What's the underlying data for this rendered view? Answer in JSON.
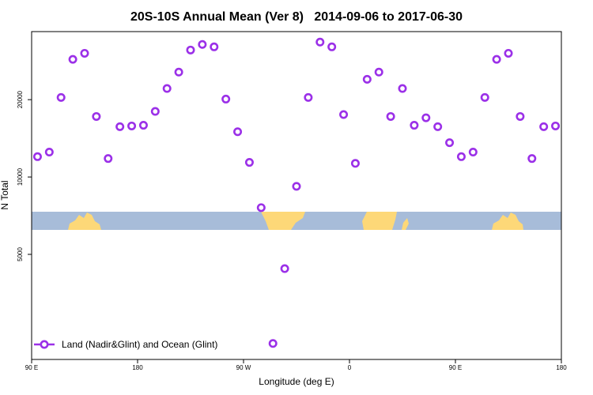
{
  "chart_data": {
    "type": "scatter",
    "title": "20S-10S Annual Mean (Ver 8)   2014-09-06 to 2017-06-30",
    "x_label": "Longitude (deg E)",
    "y_label": "N Total",
    "x": [
      95,
      105,
      115,
      125,
      135,
      145,
      155,
      165,
      175,
      185,
      195,
      205,
      215,
      225,
      235,
      245,
      255,
      265,
      275,
      285,
      295,
      305,
      315,
      325,
      335,
      345,
      355,
      365,
      375,
      385,
      395,
      405,
      415,
      425,
      435,
      445,
      455,
      465,
      475,
      485,
      495,
      505,
      515,
      525,
      535
    ],
    "series": [
      {
        "name": "Land (Nadir&Glint) and Ocean (Glint)",
        "color": "#9b30e8",
        "values": [
          12000,
          12500,
          20400,
          28700,
          30300,
          17200,
          11800,
          15700,
          15800,
          15900,
          18000,
          22100,
          25600,
          31200,
          32800,
          32100,
          20100,
          15000,
          11400,
          7600,
          2250,
          4400,
          9200,
          20400,
          33500,
          32100,
          17500,
          11300,
          24000,
          25600,
          17200,
          22100,
          15900,
          17000,
          15700,
          13600,
          12000,
          12500,
          20400,
          28700,
          30300,
          17200,
          11800,
          15700,
          15800
        ]
      }
    ],
    "xlim": [
      90,
      540
    ],
    "xticks": [
      {
        "value": 90,
        "label": "90 E"
      },
      180,
      {
        "value": 270,
        "label": "90 W"
      },
      {
        "value": 360,
        "label": "0"
      },
      {
        "value": 450,
        "label": "90 E"
      },
      {
        "value": 540,
        "label": "180"
      }
    ],
    "ylim": [
      1950,
      36800
    ],
    "yticks": [
      5000,
      10000,
      20000
    ],
    "ylog": true,
    "legend": "bottom-left"
  }
}
